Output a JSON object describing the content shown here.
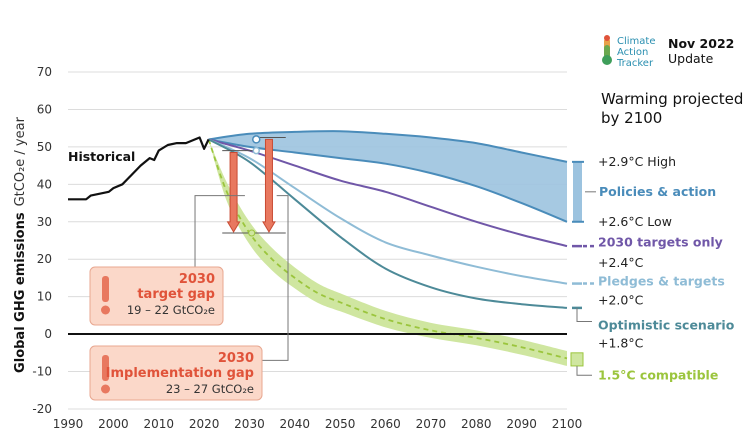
{
  "chart_data": {
    "type": "line",
    "ylabel": "Global GHG emissions",
    "yunit": "GtCO₂e / year",
    "xlim": [
      1990,
      2100
    ],
    "ylim": [
      -20,
      70
    ],
    "x_ticks": [
      1990,
      2000,
      2010,
      2020,
      2030,
      2040,
      2050,
      2060,
      2070,
      2080,
      2090,
      2100
    ],
    "y_ticks": [
      -20,
      -10,
      0,
      10,
      20,
      30,
      40,
      50,
      60,
      70
    ],
    "grid": "horizontal",
    "historical": {
      "name": "Historical",
      "color": "#111111",
      "points": [
        [
          1990,
          36
        ],
        [
          1994,
          36
        ],
        [
          1995,
          37
        ],
        [
          1997,
          37.5
        ],
        [
          1999,
          38
        ],
        [
          2000,
          39
        ],
        [
          2002,
          40
        ],
        [
          2004,
          42.5
        ],
        [
          2006,
          45
        ],
        [
          2008,
          47
        ],
        [
          2009,
          46.5
        ],
        [
          2010,
          49
        ],
        [
          2012,
          50.5
        ],
        [
          2014,
          51
        ],
        [
          2016,
          51
        ],
        [
          2018,
          52
        ],
        [
          2019,
          52.5
        ],
        [
          2020,
          49.5
        ],
        [
          2021,
          52
        ]
      ]
    },
    "policies_band": {
      "name": "Policies & action",
      "color": "#4a8cba",
      "fill": "#9cc3df",
      "high": [
        [
          2021,
          52
        ],
        [
          2030,
          53.5
        ],
        [
          2040,
          54
        ],
        [
          2050,
          54.2
        ],
        [
          2060,
          53.5
        ],
        [
          2070,
          52.5
        ],
        [
          2080,
          51
        ],
        [
          2090,
          48.5
        ],
        [
          2100,
          46
        ]
      ],
      "low": [
        [
          2021,
          52
        ],
        [
          2030,
          50
        ],
        [
          2040,
          48.5
        ],
        [
          2050,
          47
        ],
        [
          2060,
          45.5
        ],
        [
          2070,
          43
        ],
        [
          2080,
          39.5
        ],
        [
          2090,
          35
        ],
        [
          2100,
          30
        ]
      ],
      "high_label": "+2.9°C High",
      "low_label": "+2.6°C Low"
    },
    "series": [
      {
        "name": "2030 targets only",
        "temp": "+2.4°C",
        "color": "#7057a8",
        "points": [
          [
            2021,
            52
          ],
          [
            2030,
            49
          ],
          [
            2040,
            45
          ],
          [
            2050,
            41
          ],
          [
            2060,
            38
          ],
          [
            2070,
            34
          ],
          [
            2080,
            30
          ],
          [
            2090,
            26.5
          ],
          [
            2100,
            23.5
          ]
        ]
      },
      {
        "name": "Pledges & targets",
        "temp": "+2.0°C",
        "color": "#8fbcd6",
        "points": [
          [
            2021,
            52
          ],
          [
            2030,
            47
          ],
          [
            2040,
            39
          ],
          [
            2050,
            31
          ],
          [
            2060,
            24.5
          ],
          [
            2070,
            21
          ],
          [
            2080,
            18
          ],
          [
            2090,
            15.5
          ],
          [
            2100,
            13.5
          ]
        ]
      },
      {
        "name": "Optimistic scenario",
        "temp": "+1.8°C",
        "color": "#4d8a98",
        "points": [
          [
            2021,
            52
          ],
          [
            2030,
            46
          ],
          [
            2040,
            36
          ],
          [
            2050,
            26
          ],
          [
            2060,
            17.5
          ],
          [
            2070,
            12.5
          ],
          [
            2080,
            9.5
          ],
          [
            2090,
            8
          ],
          [
            2100,
            7
          ]
        ]
      }
    ],
    "compatible_band": {
      "name": "1.5°C compatible",
      "color": "#9bc53d",
      "fill": "#cfe6a0",
      "mid": [
        [
          2021,
          52
        ],
        [
          2025,
          38
        ],
        [
          2030,
          27
        ],
        [
          2035,
          20
        ],
        [
          2040,
          15
        ],
        [
          2045,
          11
        ],
        [
          2050,
          8.5
        ],
        [
          2060,
          4
        ],
        [
          2070,
          1
        ],
        [
          2080,
          -1
        ],
        [
          2090,
          -3.5
        ],
        [
          2100,
          -6.5
        ]
      ],
      "spread": [
        0,
        2.5,
        3,
        3,
        2.8,
        2.6,
        2.4,
        2.2,
        2,
        2,
        2,
        2
      ]
    },
    "title_right": "Warming projected by 2100",
    "gaps": [
      {
        "year": "2030",
        "title": "target gap",
        "range": "19 – 22  GtCO₂e"
      },
      {
        "year": "2030",
        "title": "Implementation gap",
        "range": "23 – 27  GtCO₂e"
      }
    ]
  },
  "logo": {
    "line1": "Climate",
    "line2": "Action",
    "line3": "Tracker"
  },
  "update": {
    "month": "Nov 2022",
    "label": "Update"
  },
  "colors": {
    "policies": "#4a8cba",
    "targets": "#7057a8",
    "pledges": "#8fbcd6",
    "optimistic": "#4d8a98",
    "compatible": "#9bc53d",
    "gap": "#e0533a"
  }
}
